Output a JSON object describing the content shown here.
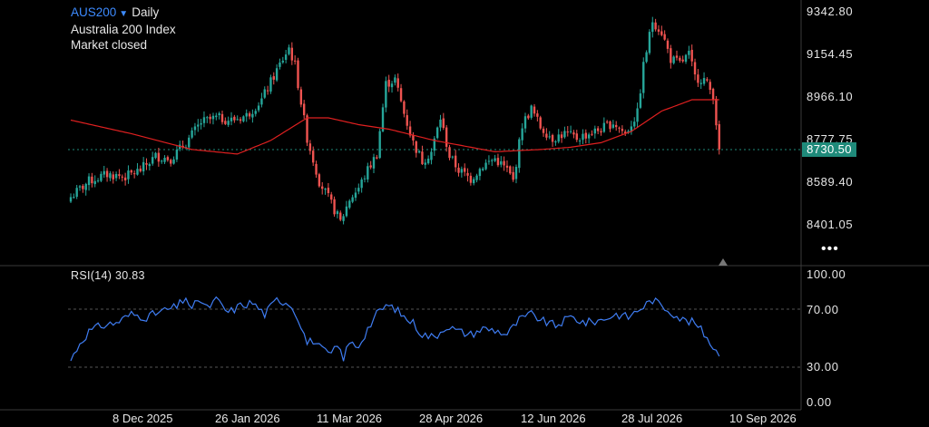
{
  "header": {
    "symbol": "AUS200",
    "interval": "Daily",
    "name": "Australia 200 Index",
    "status": "Market closed"
  },
  "price_axis": {
    "ticks": [
      "9342.80",
      "9154.45",
      "8966.10",
      "8777.75",
      "8589.40",
      "8401.05"
    ],
    "last_price": "8730.50",
    "more_label": "•••"
  },
  "rsi": {
    "label": "RSI(14) 30.83",
    "ticks": [
      "100.00",
      "70.00",
      "30.00",
      "0.00"
    ]
  },
  "time_axis": {
    "labels": [
      "8 Dec 2025",
      "26 Jan 2026",
      "11 Mar 2026",
      "28 Apr 2026",
      "12 Jun 2026",
      "28 Jul 2026",
      "10 Sep 2026"
    ]
  },
  "colors": {
    "up": "#26a69a",
    "down": "#ef5350",
    "ma": "#e02020",
    "rsi": "#3f7df3",
    "accent": "#3d8bff"
  },
  "chart_data": [
    {
      "type": "candlestick",
      "title": "AUS200 Daily",
      "ylim": [
        8330,
        9400
      ],
      "anchors": [
        [
          0,
          8520
        ],
        [
          6,
          8590
        ],
        [
          12,
          8620
        ],
        [
          18,
          8610
        ],
        [
          23,
          8640
        ],
        [
          28,
          8700
        ],
        [
          33,
          8690
        ],
        [
          38,
          8760
        ],
        [
          43,
          8850
        ],
        [
          48,
          8870
        ],
        [
          53,
          8860
        ],
        [
          58,
          8880
        ],
        [
          63,
          8950
        ],
        [
          68,
          9080
        ],
        [
          72,
          9180
        ],
        [
          74,
          9100
        ],
        [
          78,
          8780
        ],
        [
          82,
          8590
        ],
        [
          86,
          8490
        ],
        [
          89,
          8410
        ],
        [
          92,
          8510
        ],
        [
          95,
          8560
        ],
        [
          98,
          8640
        ],
        [
          101,
          8710
        ],
        [
          104,
          9020
        ],
        [
          107,
          9040
        ],
        [
          110,
          8890
        ],
        [
          113,
          8760
        ],
        [
          116,
          8680
        ],
        [
          119,
          8720
        ],
        [
          122,
          8870
        ],
        [
          125,
          8700
        ],
        [
          128,
          8640
        ],
        [
          132,
          8600
        ],
        [
          136,
          8660
        ],
        [
          140,
          8690
        ],
        [
          144,
          8640
        ],
        [
          146,
          8590
        ],
        [
          149,
          8840
        ],
        [
          152,
          8910
        ],
        [
          155,
          8830
        ],
        [
          159,
          8780
        ],
        [
          163,
          8800
        ],
        [
          167,
          8780
        ],
        [
          171,
          8800
        ],
        [
          175,
          8820
        ],
        [
          179,
          8850
        ],
        [
          183,
          8800
        ],
        [
          187,
          8890
        ],
        [
          189,
          9100
        ],
        [
          192,
          9300
        ],
        [
          195,
          9250
        ],
        [
          198,
          9130
        ],
        [
          201,
          9110
        ],
        [
          204,
          9150
        ],
        [
          206,
          9050
        ],
        [
          209,
          9040
        ],
        [
          212,
          8970
        ],
        [
          214,
          8730.5
        ]
      ],
      "ma": [
        [
          0,
          8860
        ],
        [
          20,
          8800
        ],
        [
          40,
          8730
        ],
        [
          55,
          8710
        ],
        [
          66,
          8770
        ],
        [
          78,
          8870
        ],
        [
          85,
          8870
        ],
        [
          95,
          8840
        ],
        [
          105,
          8820
        ],
        [
          120,
          8770
        ],
        [
          140,
          8720
        ],
        [
          155,
          8730
        ],
        [
          165,
          8740
        ],
        [
          175,
          8760
        ],
        [
          185,
          8810
        ],
        [
          195,
          8900
        ],
        [
          205,
          8950
        ],
        [
          214,
          8950
        ]
      ],
      "last_price": 8730.5
    },
    {
      "type": "line",
      "title": "RSI(14)",
      "ylim": [
        0,
        100
      ],
      "levels": [
        70,
        30
      ],
      "anchors": [
        [
          0,
          28
        ],
        [
          3,
          40
        ],
        [
          6,
          48
        ],
        [
          10,
          52
        ],
        [
          15,
          54
        ],
        [
          20,
          60
        ],
        [
          25,
          58
        ],
        [
          30,
          62
        ],
        [
          35,
          65
        ],
        [
          38,
          72
        ],
        [
          40,
          62
        ],
        [
          42,
          71
        ],
        [
          45,
          64
        ],
        [
          48,
          70
        ],
        [
          52,
          61
        ],
        [
          56,
          66
        ],
        [
          60,
          68
        ],
        [
          64,
          60
        ],
        [
          68,
          70
        ],
        [
          72,
          68
        ],
        [
          75,
          58
        ],
        [
          78,
          40
        ],
        [
          80,
          42
        ],
        [
          83,
          35
        ],
        [
          86,
          32
        ],
        [
          88,
          38
        ],
        [
          90,
          30
        ],
        [
          92,
          40
        ],
        [
          95,
          38
        ],
        [
          98,
          50
        ],
        [
          101,
          60
        ],
        [
          104,
          66
        ],
        [
          107,
          64
        ],
        [
          110,
          58
        ],
        [
          113,
          54
        ],
        [
          116,
          46
        ],
        [
          120,
          44
        ],
        [
          124,
          52
        ],
        [
          128,
          48
        ],
        [
          132,
          46
        ],
        [
          136,
          50
        ],
        [
          140,
          49
        ],
        [
          144,
          46
        ],
        [
          148,
          56
        ],
        [
          152,
          60
        ],
        [
          156,
          55
        ],
        [
          160,
          52
        ],
        [
          165,
          58
        ],
        [
          170,
          54
        ],
        [
          175,
          56
        ],
        [
          180,
          60
        ],
        [
          184,
          58
        ],
        [
          188,
          64
        ],
        [
          192,
          70
        ],
        [
          195,
          66
        ],
        [
          198,
          62
        ],
        [
          202,
          56
        ],
        [
          206,
          54
        ],
        [
          210,
          44
        ],
        [
          214,
          30.83
        ]
      ],
      "value": 30.83
    }
  ]
}
